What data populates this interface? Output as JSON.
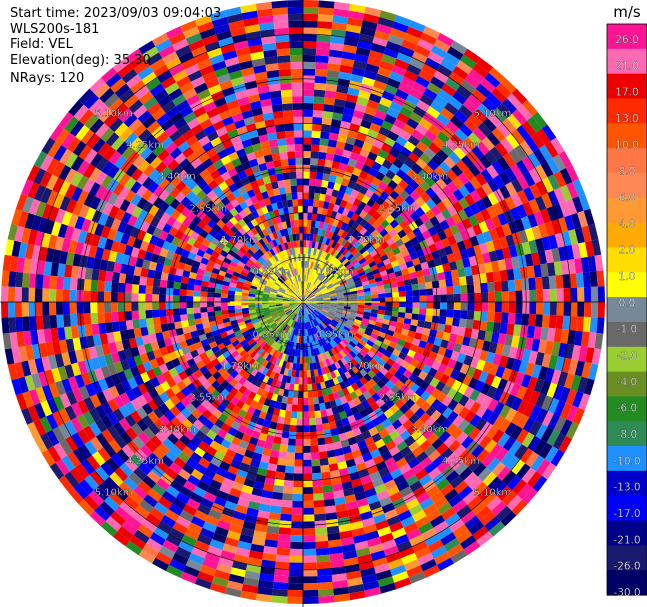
{
  "header": {
    "start_time": "Start time: 2023/09/03 09:04:03",
    "instrument": "WLS200s-181",
    "field": "Field: VEL",
    "elevation": "Elevation(deg): 35.30",
    "nrays": "NRays: 120"
  },
  "chart_data": {
    "type": "heatmap",
    "projection": "polar (plan position indicator)",
    "title": "",
    "n_rays": 120,
    "field": "VEL",
    "units": "m/s",
    "range_rings_km": [
      0.85,
      1.7,
      2.55,
      3.4,
      4.25,
      5.1
    ],
    "range_ring_labels": [
      "0.85km",
      "1.70km",
      "2.55km",
      "3.40km",
      "4.25km",
      "5.10km"
    ],
    "max_range_km": 5.75,
    "colorbar": {
      "label": "m/s",
      "ticks": [
        "26.0",
        "21.0",
        "17.0",
        "13.0",
        "10.0",
        "8.0",
        "6.0",
        "4.0",
        "2.0",
        "1.0",
        "0.0",
        "-1.0",
        "-2.0",
        "-4.0",
        "-6.0",
        "-8.0",
        "-10.0",
        "-13.0",
        "-17.0",
        "-21.0",
        "-26.0",
        "-30.0"
      ],
      "colors": [
        "#ff1493",
        "#ff69b4",
        "#ee0000",
        "#ff2a00",
        "#ff5500",
        "#ff7744",
        "#ff8855",
        "#ff9933",
        "#ffaa00",
        "#ffdd00",
        "#ffff00",
        "#778899",
        "#696969",
        "#9acd32",
        "#6b8e23",
        "#228b22",
        "#2e8b57",
        "#1e90ff",
        "#0000cd",
        "#0000ff",
        "#00008b",
        "#191970",
        "#000066"
      ]
    },
    "near_field": {
      "note": "inner ~1 km shows coherent wind: positive (yellow/orange) to the north, near-zero gray to the east, negative (green) to the west and south-west, blue to the south-east"
    }
  }
}
